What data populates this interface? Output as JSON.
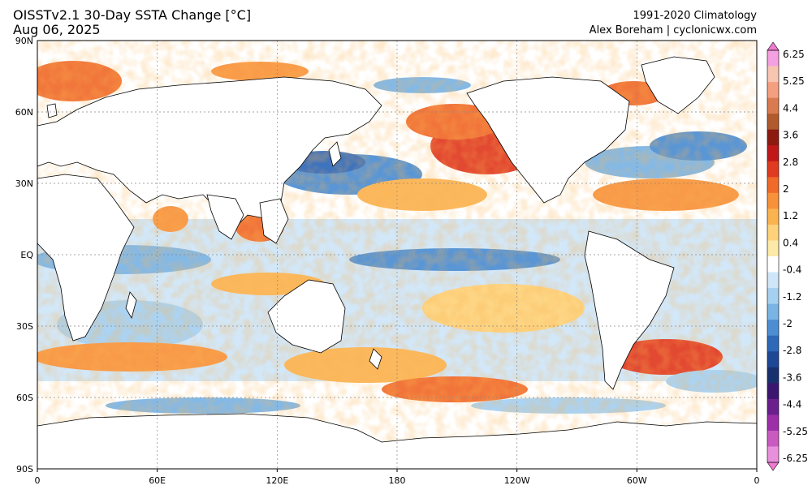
{
  "header": {
    "title": "OISSTv2.1 30-Day SSTA Change [°C]",
    "date": "Aug 06, 2025",
    "climatology": "1991-2020 Climatology",
    "credit": "Alex Boreham | cyclonicwx.com"
  },
  "map": {
    "projection": "equirectangular",
    "lat_range": [
      -90,
      90
    ],
    "lon_range": [
      0,
      360
    ],
    "gridlines": "dotted",
    "lat_labels": [
      "90N",
      "60N",
      "30N",
      "EQ",
      "30S",
      "60S",
      "90S"
    ],
    "lon_labels": [
      "0",
      "60E",
      "120E",
      "180",
      "120W",
      "60W",
      "0"
    ],
    "land_color": "#ffffff",
    "coastline_color": "#000000"
  },
  "colorbar": {
    "units": "°C",
    "extend": "both",
    "tick_labels": [
      "6.25",
      "5.25",
      "4.4",
      "3.6",
      "2.8",
      "2",
      "1.2",
      "0.4",
      "-0.4",
      "-1.2",
      "-2",
      "-2.8",
      "-3.6",
      "-4.4",
      "-5.25",
      "-6.25"
    ],
    "colors_top_to_bottom": [
      "#f5a0e0",
      "#f8c5b0",
      "#f4a080",
      "#d97a50",
      "#b05a2e",
      "#8c1a10",
      "#c01818",
      "#e03a20",
      "#f06a2a",
      "#f8923a",
      "#fbb350",
      "#fdd27a",
      "#fde9a8",
      "#ffffff",
      "#cfe6f8",
      "#a6d0f0",
      "#7ab4e4",
      "#4d8ed2",
      "#2e68b8",
      "#1e4896",
      "#18306e",
      "#3b1670",
      "#6a1f8c",
      "#9c2fa8",
      "#c85ac0",
      "#e890dc"
    ]
  }
}
